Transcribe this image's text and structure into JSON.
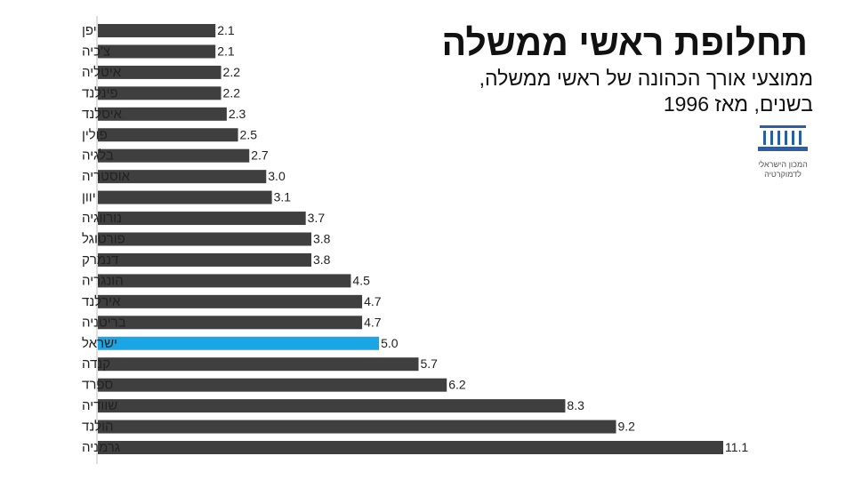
{
  "chart_data": {
    "type": "bar",
    "orientation": "horizontal",
    "title": "תחלופת ראשי ממשלה",
    "subtitle_line1": "ממוצעי אורך הכהונה של ראשי ממשלה,",
    "subtitle_line2": "בשנים, מאז 1996",
    "categories": [
      "יפן",
      "צ'כיה",
      "איטליה",
      "פינלנד",
      "איסלנד",
      "פולין",
      "בלגיה",
      "אוסטריה",
      "יוון",
      "נורווגיה",
      "פורטוגל",
      "דנמרק",
      "הונגריה",
      "אירלנד",
      "בריטניה",
      "ישראל",
      "קנדה",
      "ספרד",
      "שוודיה",
      "הולנד",
      "גרמניה"
    ],
    "values": [
      2.1,
      2.1,
      2.2,
      2.2,
      2.3,
      2.5,
      2.7,
      3.0,
      3.1,
      3.7,
      3.8,
      3.8,
      4.5,
      4.7,
      4.7,
      5.0,
      5.7,
      6.2,
      8.3,
      9.2,
      11.1
    ],
    "value_labels": [
      "2.1",
      "2.1",
      "2.2",
      "2.2",
      "2.3",
      "2.5",
      "2.7",
      "3.0",
      "3.1",
      "3.7",
      "3.8",
      "3.8",
      "4.5",
      "4.7",
      "4.7",
      "5.0",
      "5.7",
      "6.2",
      "8.3",
      "9.2",
      "11.1"
    ],
    "highlight_category": "ישראל",
    "xlim": [
      0,
      11.1
    ],
    "grid": false,
    "colors": {
      "bar": "#3f3f3f",
      "highlight": "#1aa6e4"
    }
  },
  "logo": {
    "name": "institute-logo-icon",
    "line1": "המכון הישראלי",
    "line2": "לדמוקרטיה",
    "color": "#2a5ea8"
  }
}
